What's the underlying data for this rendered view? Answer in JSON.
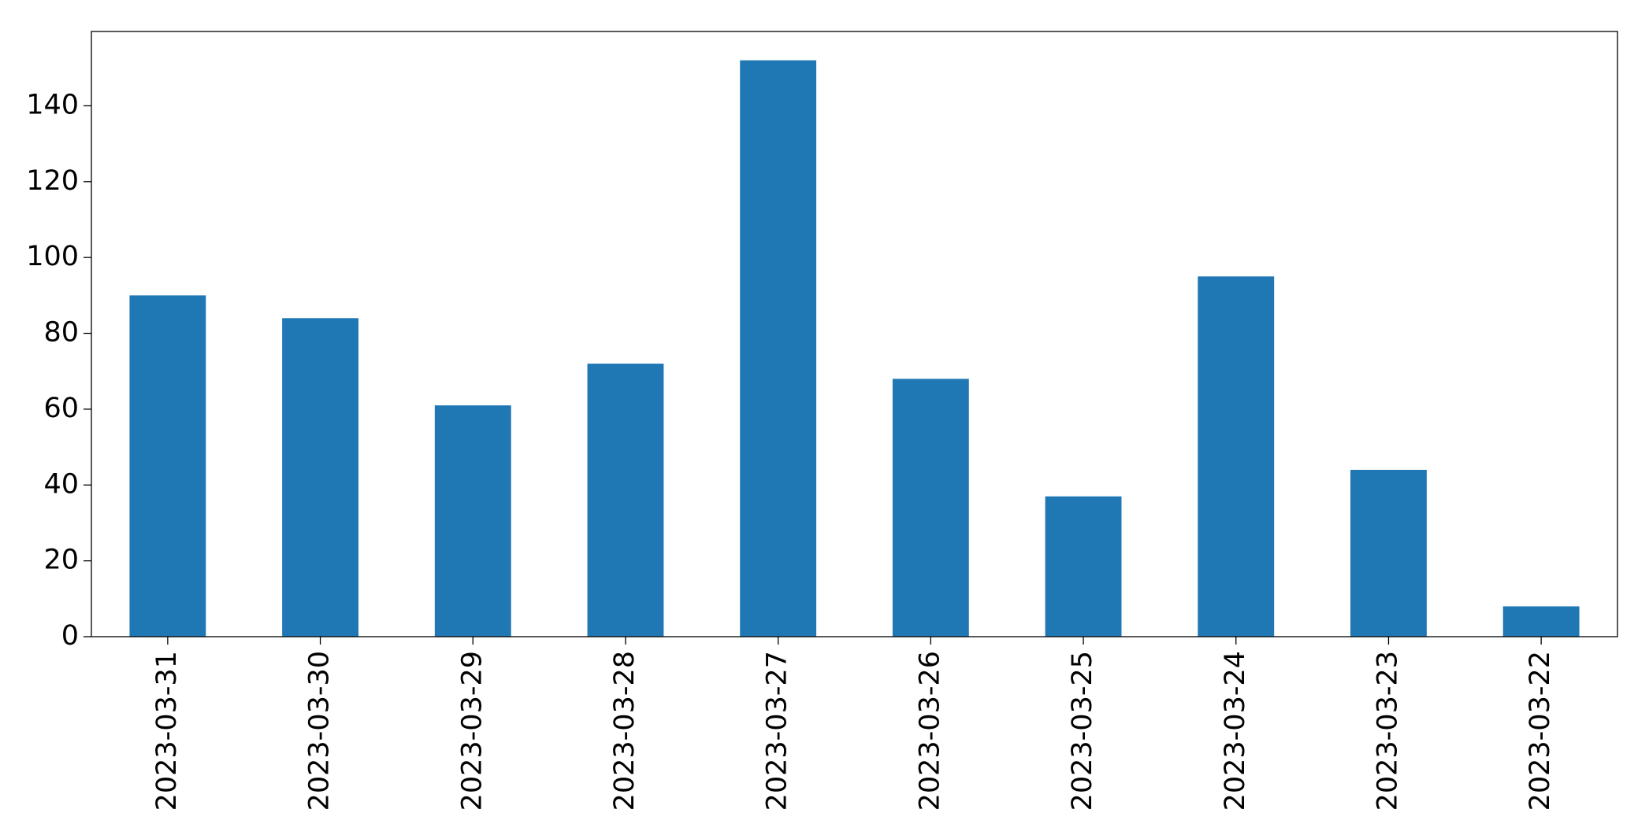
{
  "chart_data": {
    "type": "bar",
    "categories": [
      "2023-03-31",
      "2023-03-30",
      "2023-03-29",
      "2023-03-28",
      "2023-03-27",
      "2023-03-26",
      "2023-03-25",
      "2023-03-24",
      "2023-03-23",
      "2023-03-22"
    ],
    "values": [
      90,
      84,
      61,
      72,
      152,
      68,
      37,
      95,
      44,
      8
    ],
    "color": "#1f77b4",
    "ylim": [
      0,
      159.6
    ],
    "yticks": [
      0,
      20,
      40,
      60,
      80,
      100,
      120,
      140
    ],
    "grid": false
  }
}
